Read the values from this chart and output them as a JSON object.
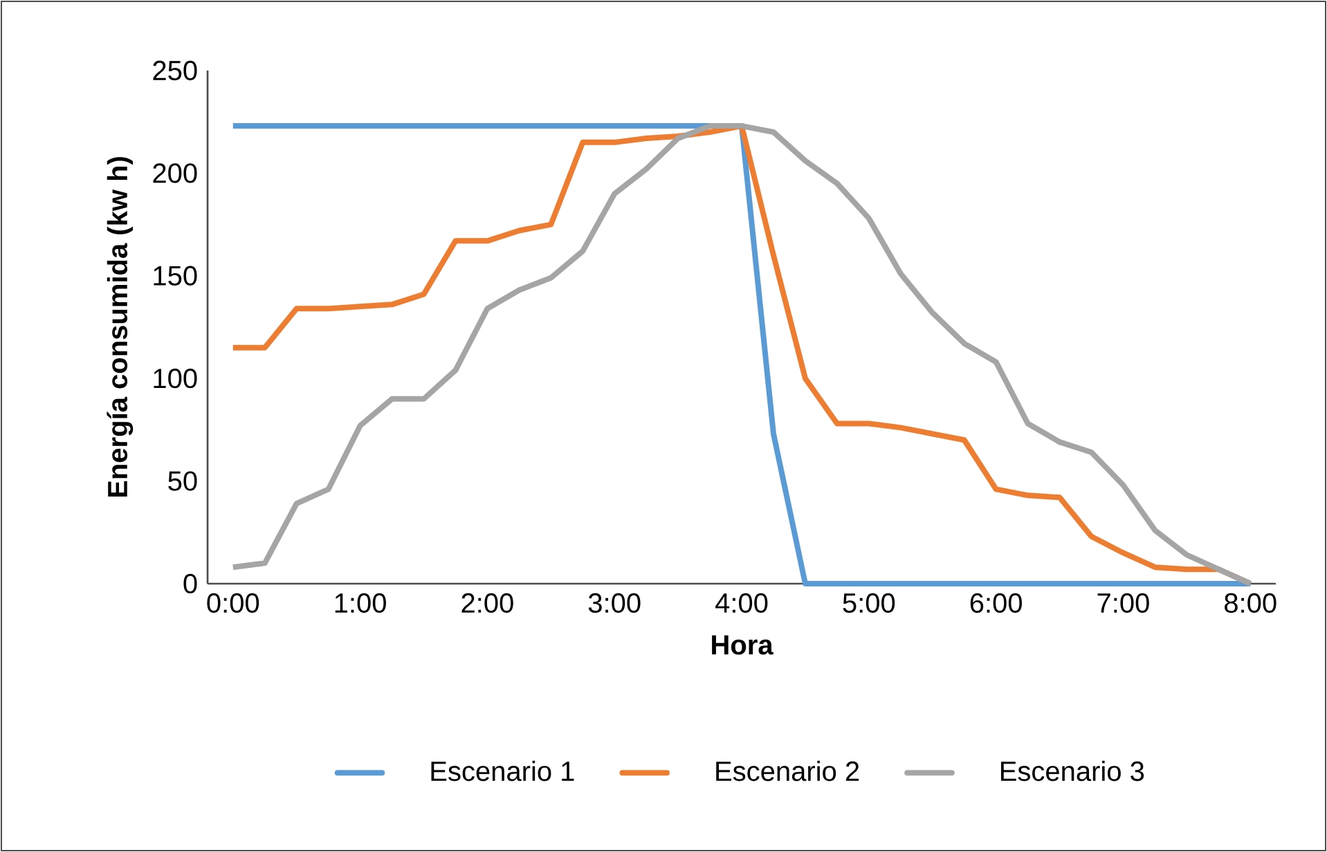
{
  "chart_data": {
    "type": "line",
    "xlabel": "Hora",
    "ylabel": "Energía consumida (kw h)",
    "x": [
      0,
      0.25,
      0.5,
      0.75,
      1,
      1.25,
      1.5,
      1.75,
      2,
      2.25,
      2.5,
      2.75,
      3,
      3.25,
      3.5,
      3.75,
      4,
      4.25,
      4.5,
      4.75,
      5,
      5.25,
      5.5,
      5.75,
      6,
      6.25,
      6.5,
      6.75,
      7,
      7.25,
      7.5,
      7.75,
      8
    ],
    "series": [
      {
        "name": "Escenario 1",
        "color": "#5b9bd5",
        "values": [
          223,
          223,
          223,
          223,
          223,
          223,
          223,
          223,
          223,
          223,
          223,
          223,
          223,
          223,
          223,
          223,
          223,
          73,
          0,
          0,
          0,
          0,
          0,
          0,
          0,
          0,
          0,
          0,
          0,
          0,
          0,
          0,
          0
        ]
      },
      {
        "name": "Escenario 2",
        "color": "#ed7d31",
        "values": [
          115,
          115,
          134,
          134,
          135,
          136,
          141,
          167,
          167,
          172,
          175,
          215,
          215,
          217,
          218,
          220,
          223,
          160,
          100,
          78,
          78,
          76,
          73,
          70,
          46,
          43,
          42,
          23,
          15,
          8,
          7,
          7,
          0
        ]
      },
      {
        "name": "Escenario 3",
        "color": "#a5a5a5",
        "values": [
          8,
          10,
          39,
          46,
          77,
          90,
          90,
          104,
          134,
          143,
          149,
          162,
          190,
          202,
          217,
          223,
          223,
          220,
          206,
          195,
          178,
          151,
          132,
          117,
          108,
          78,
          69,
          64,
          48,
          26,
          14,
          7,
          0
        ]
      }
    ],
    "xlim": [
      -0.2,
      8.2
    ],
    "ylim": [
      0,
      250
    ],
    "yticks": [
      0,
      50,
      100,
      150,
      200,
      250
    ],
    "xticks": [
      {
        "value": 0,
        "label": "0:00"
      },
      {
        "value": 1,
        "label": "1:00"
      },
      {
        "value": 2,
        "label": "2:00"
      },
      {
        "value": 3,
        "label": "3:00"
      },
      {
        "value": 4,
        "label": "4:00"
      },
      {
        "value": 5,
        "label": "5:00"
      },
      {
        "value": 6,
        "label": "6:00"
      },
      {
        "value": 7,
        "label": "7:00"
      },
      {
        "value": 8,
        "label": "8:00"
      }
    ],
    "legend": "bottom"
  }
}
